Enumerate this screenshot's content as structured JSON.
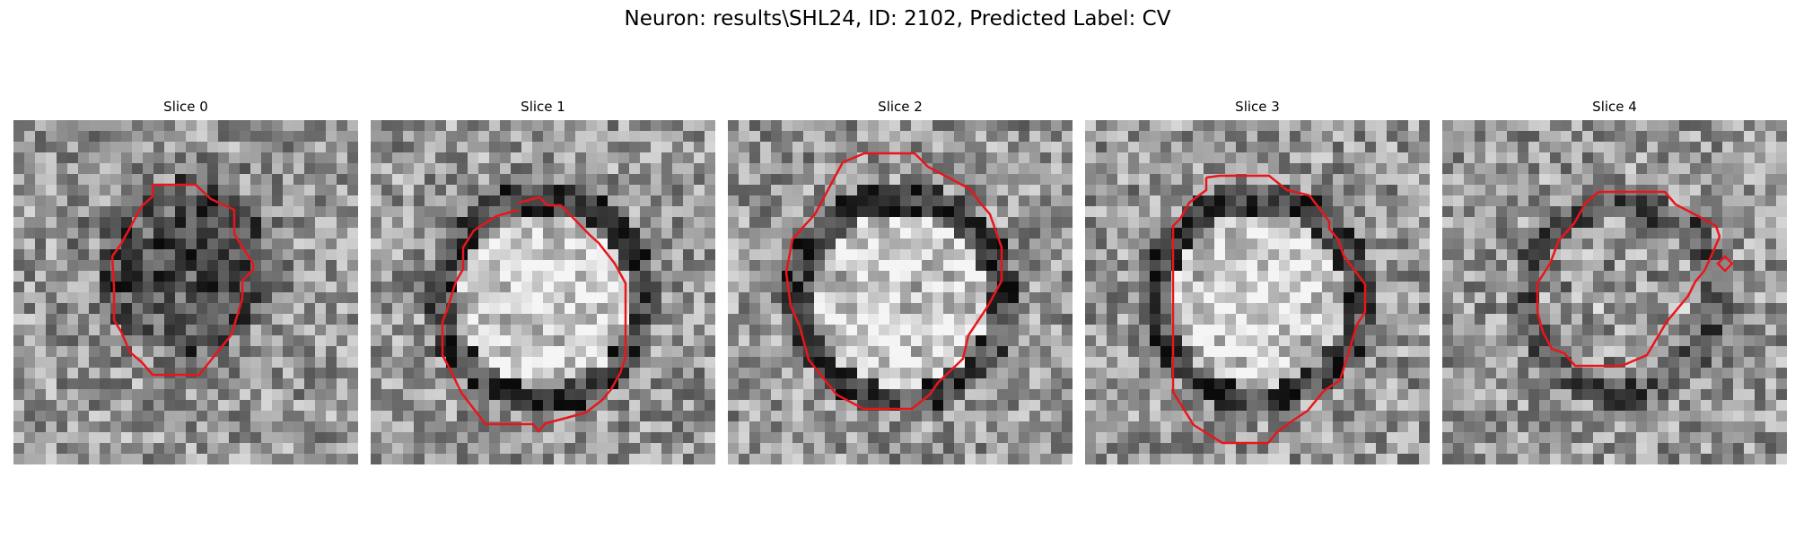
{
  "figure": {
    "title": "Neuron: results\\SHL24, ID: 2102, Predicted Label: CV"
  },
  "panels": [
    {
      "title": "Slice 0",
      "center": "dark",
      "outline_color": "#e8161c"
    },
    {
      "title": "Slice 1",
      "center": "bright",
      "outline_color": "#e8161c"
    },
    {
      "title": "Slice 2",
      "center": "bright",
      "outline_color": "#e8161c"
    },
    {
      "title": "Slice 3",
      "center": "bright",
      "outline_color": "#e8161c"
    },
    {
      "title": "Slice 4",
      "center": "mixed",
      "outline_color": "#e8161c"
    }
  ]
}
